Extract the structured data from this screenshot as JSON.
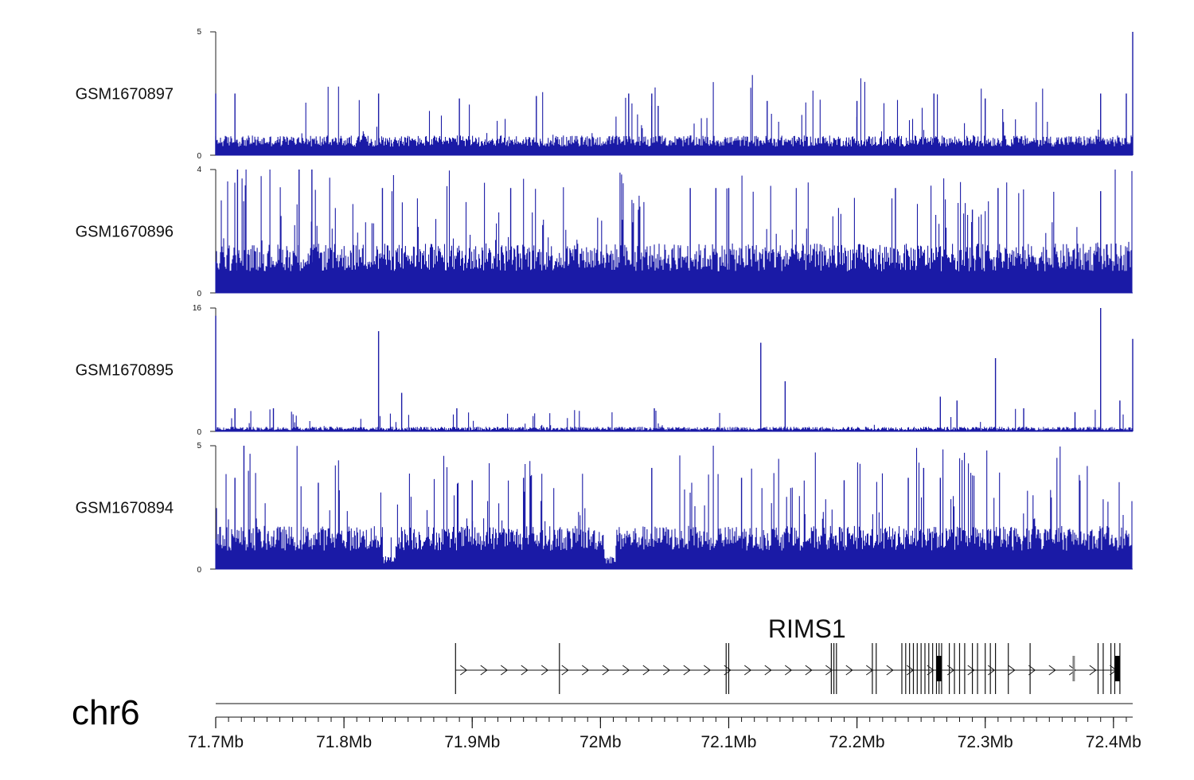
{
  "chart_data": {
    "type": "area",
    "region": {
      "chrom": "chr6",
      "start_mb": 71.7,
      "end_mb": 72.415
    },
    "tracks": [
      {
        "name": "GSM1670897",
        "ylim": [
          0,
          5
        ],
        "ytick_labels": [
          "5",
          "0"
        ],
        "color": "#1a1aa6",
        "baseline": 0.35,
        "noise": 0.45,
        "spike_prob": 0.05,
        "spike_max": 2.5,
        "peaks": [
          {
            "x": 71.7,
            "y": 2.5
          },
          {
            "x": 71.715,
            "y": 2.5
          },
          {
            "x": 71.827,
            "y": 2.5
          },
          {
            "x": 71.89,
            "y": 2.3
          },
          {
            "x": 71.95,
            "y": 2.4
          },
          {
            "x": 72.022,
            "y": 2.5
          },
          {
            "x": 72.04,
            "y": 2.5
          },
          {
            "x": 72.04,
            "y": 2.0
          },
          {
            "x": 72.045,
            "y": 2.0
          },
          {
            "x": 72.13,
            "y": 2.2
          },
          {
            "x": 72.2,
            "y": 2.2
          },
          {
            "x": 72.26,
            "y": 2.5
          },
          {
            "x": 72.3,
            "y": 2.3
          },
          {
            "x": 72.39,
            "y": 2.5
          },
          {
            "x": 72.41,
            "y": 2.5
          },
          {
            "x": 72.415,
            "y": 5.0
          }
        ]
      },
      {
        "name": "GSM1670896",
        "ylim": [
          0,
          4
        ],
        "ytick_labels": [
          "4",
          "0"
        ],
        "color": "#1a1aa6",
        "baseline": 0.7,
        "noise": 0.9,
        "spike_prob": 0.12,
        "spike_max": 2.7,
        "peaks": [
          {
            "x": 71.717,
            "y": 4.0
          },
          {
            "x": 71.765,
            "y": 4.0
          },
          {
            "x": 71.775,
            "y": 4.0
          },
          {
            "x": 71.83,
            "y": 3.4
          },
          {
            "x": 71.93,
            "y": 3.4
          },
          {
            "x": 72.07,
            "y": 3.4
          },
          {
            "x": 72.09,
            "y": 3.4
          },
          {
            "x": 72.1,
            "y": 3.4
          },
          {
            "x": 72.23,
            "y": 3.4
          },
          {
            "x": 72.29,
            "y": 2.7
          },
          {
            "x": 72.31,
            "y": 3.4
          },
          {
            "x": 72.39,
            "y": 3.3
          }
        ]
      },
      {
        "name": "GSM1670895",
        "ylim": [
          0,
          16
        ],
        "ytick_labels": [
          "16",
          "0"
        ],
        "color": "#1a1aa6",
        "baseline": 0.15,
        "noise": 0.45,
        "spike_prob": 0.03,
        "spike_max": 2.5,
        "peaks": [
          {
            "x": 71.7,
            "y": 15.0
          },
          {
            "x": 71.715,
            "y": 3.0
          },
          {
            "x": 71.745,
            "y": 3.0
          },
          {
            "x": 71.827,
            "y": 13.0
          },
          {
            "x": 71.845,
            "y": 5.0
          },
          {
            "x": 71.888,
            "y": 3.0
          },
          {
            "x": 72.042,
            "y": 3.0
          },
          {
            "x": 72.125,
            "y": 11.5
          },
          {
            "x": 72.144,
            "y": 6.5
          },
          {
            "x": 72.265,
            "y": 4.5
          },
          {
            "x": 72.278,
            "y": 4.0
          },
          {
            "x": 72.308,
            "y": 9.5
          },
          {
            "x": 72.33,
            "y": 3.0
          },
          {
            "x": 72.37,
            "y": 2.5
          },
          {
            "x": 72.39,
            "y": 16.0
          },
          {
            "x": 72.405,
            "y": 4.0
          },
          {
            "x": 72.415,
            "y": 12.0
          }
        ]
      },
      {
        "name": "GSM1670894",
        "ylim": [
          0,
          5
        ],
        "ytick_labels": [
          "5",
          "0"
        ],
        "color": "#1a1aa6",
        "baseline": 0.75,
        "noise": 1.0,
        "spike_prob": 0.1,
        "spike_max": 3.5,
        "peaks": [
          {
            "x": 71.722,
            "y": 5.0
          },
          {
            "x": 71.715,
            "y": 3.7
          },
          {
            "x": 71.78,
            "y": 3.5
          },
          {
            "x": 71.9,
            "y": 3.6
          },
          {
            "x": 71.94,
            "y": 3.7
          },
          {
            "x": 72.04,
            "y": 4.1
          },
          {
            "x": 72.11,
            "y": 3.7
          },
          {
            "x": 72.19,
            "y": 3.6
          },
          {
            "x": 72.24,
            "y": 3.7
          },
          {
            "x": 72.252,
            "y": 4.1
          },
          {
            "x": 72.265,
            "y": 3.7
          }
        ],
        "dips": [
          {
            "from": 71.83,
            "to": 71.84
          },
          {
            "from": 72.003,
            "to": 72.012
          }
        ]
      }
    ],
    "gene": {
      "name": "RIMS1",
      "start_mb": 71.887,
      "end_mb": 72.405,
      "strand": "+",
      "exons_mb": [
        71.887,
        71.968,
        72.098,
        72.1,
        72.18,
        72.182,
        72.184,
        72.212,
        72.215,
        72.235,
        72.238,
        72.241,
        72.244,
        72.247,
        72.25,
        72.253,
        72.256,
        72.259,
        72.262,
        72.264,
        72.266,
        72.272,
        72.276,
        72.28,
        72.284,
        72.29,
        72.294,
        72.3,
        72.304,
        72.308,
        72.318,
        72.335,
        72.388,
        72.392,
        72.398,
        72.401,
        72.405
      ],
      "grey_exons_mb": [
        72.369
      ],
      "thick_exons_mb": [
        72.264,
        72.403
      ]
    },
    "genome_axis": {
      "chrom_label": "chr6",
      "ticks_mb": [
        71.7,
        71.8,
        71.9,
        72.0,
        72.1,
        72.2,
        72.3,
        72.4
      ],
      "tick_labels": [
        "71.7Mb",
        "71.8Mb",
        "71.9Mb",
        "72Mb",
        "72.1Mb",
        "72.2Mb",
        "72.3Mb",
        "72.4Mb"
      ],
      "minor_step_mb": 0.01
    }
  }
}
